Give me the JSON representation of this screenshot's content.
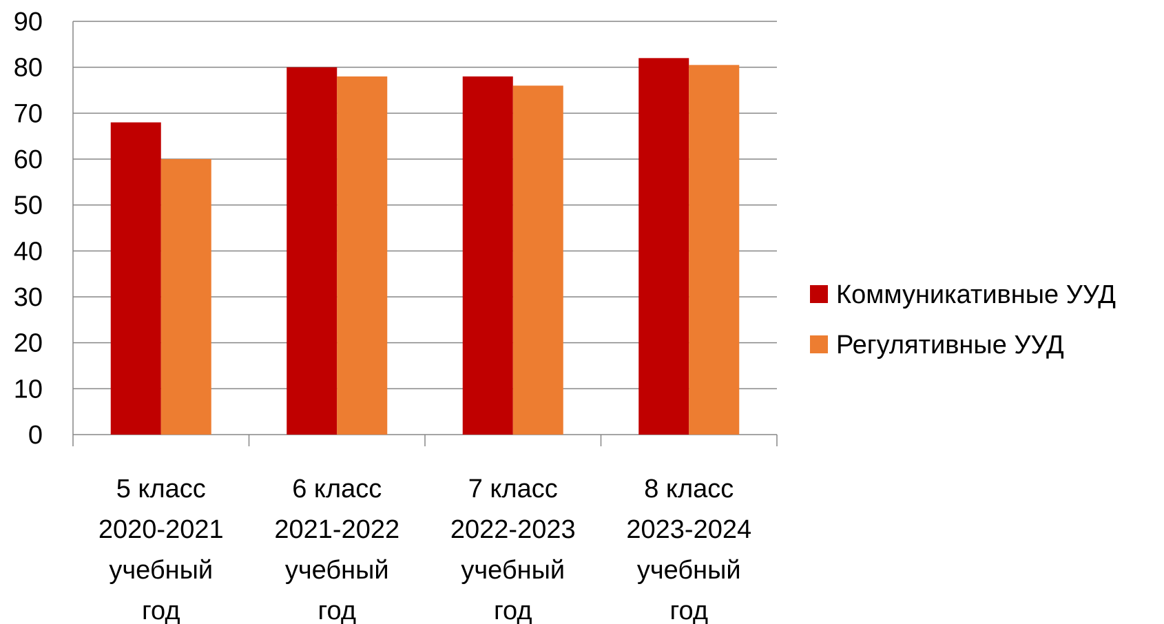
{
  "chart_data": {
    "type": "bar",
    "categories": [
      [
        "5 класс",
        "2020-2021",
        "учебный",
        "год"
      ],
      [
        "6 класс",
        "2021-2022",
        "учебный",
        "год"
      ],
      [
        "7 класс",
        "2022-2023",
        "учебный",
        "год"
      ],
      [
        "8 класс",
        "2023-2024",
        "учебный",
        "год"
      ]
    ],
    "series": [
      {
        "name": "Коммуникативные УУД",
        "color": "#C00000",
        "values": [
          68,
          80,
          78,
          82
        ]
      },
      {
        "name": "Регулятивные УУД",
        "color": "#ED7D31",
        "values": [
          60,
          78,
          76,
          80.5
        ]
      }
    ],
    "ylim": [
      0,
      90
    ],
    "yticks": [
      0,
      10,
      20,
      30,
      40,
      50,
      60,
      70,
      80,
      90
    ],
    "grid": true,
    "legend_position": "right",
    "title": "",
    "xlabel": "",
    "ylabel": ""
  }
}
